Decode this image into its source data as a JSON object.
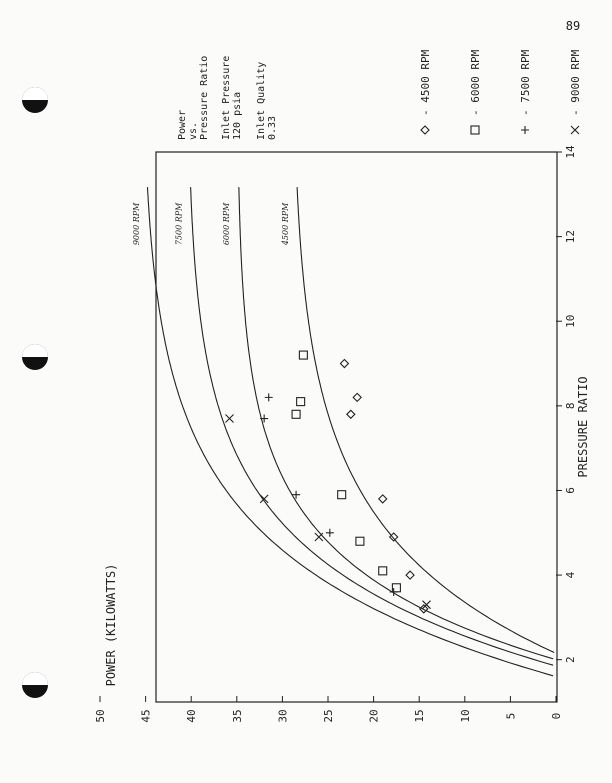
{
  "page_number": "89",
  "colors": {
    "ink": "#222222",
    "paper": "#fbfbf9",
    "punch_hole": "#111111"
  },
  "info_block": {
    "line1": "Power",
    "line2": "vs.",
    "line3": "Pressure Ratio",
    "line4": "Inlet Pressure",
    "line5": "120 psia",
    "line6": "Inlet Quality",
    "line7": "0.33"
  },
  "chart_data": {
    "type": "scatter",
    "orientation": "rotated 90 degrees counter-clockwise on the page",
    "xlabel": "PRESSURE RATIO",
    "ylabel": "POWER (KILOWATTS)",
    "xlim": [
      1,
      14
    ],
    "ylim": [
      0,
      50
    ],
    "x_ticks": [
      "2",
      "4",
      "6",
      "8",
      "10",
      "12",
      "14"
    ],
    "y_ticks": [
      "0",
      "5",
      "10",
      "15",
      "20",
      "25",
      "30",
      "35",
      "40",
      "45",
      "50"
    ],
    "grid": false,
    "legend": [
      {
        "marker": "diamond",
        "label": "- 4500 RPM"
      },
      {
        "marker": "square",
        "label": "- 6000 RPM"
      },
      {
        "marker": "plus",
        "label": "- 7500 RPM"
      },
      {
        "marker": "cross",
        "label": "- 9000 RPM"
      }
    ],
    "series": [
      {
        "name": "4500 RPM",
        "marker": "diamond",
        "curve_label": "4500 RPM",
        "points": [
          [
            3.2,
            14.5
          ],
          [
            4.0,
            16.0
          ],
          [
            4.9,
            17.8
          ],
          [
            5.8,
            19.0
          ],
          [
            7.8,
            22.5
          ],
          [
            8.2,
            21.8
          ],
          [
            9.0,
            23.2
          ]
        ]
      },
      {
        "name": "6000 RPM",
        "marker": "square",
        "curve_label": "6000 RPM",
        "points": [
          [
            3.7,
            17.5
          ],
          [
            4.1,
            19.0
          ],
          [
            4.8,
            21.5
          ],
          [
            5.9,
            23.5
          ],
          [
            7.8,
            28.5
          ],
          [
            8.1,
            28.0
          ],
          [
            9.2,
            27.7
          ]
        ]
      },
      {
        "name": "7500 RPM",
        "marker": "plus",
        "curve_label": "7500 RPM",
        "points": [
          [
            3.6,
            17.8
          ],
          [
            5.0,
            24.8
          ],
          [
            5.9,
            28.5
          ],
          [
            7.7,
            32.0
          ],
          [
            8.2,
            31.5
          ]
        ]
      },
      {
        "name": "9000 RPM",
        "marker": "cross",
        "curve_label": "9000 RPM",
        "points": [
          [
            3.3,
            14.2
          ],
          [
            4.9,
            26.0
          ],
          [
            5.8,
            32.0
          ],
          [
            7.7,
            35.8
          ]
        ]
      }
    ],
    "curves": [
      {
        "name": "4500 RPM",
        "a": 29.0,
        "x0": 2.15,
        "k": 0.35
      },
      {
        "name": "6000 RPM",
        "a": 35.0,
        "x0": 2.0,
        "k": 0.45
      },
      {
        "name": "7500 RPM",
        "a": 40.5,
        "x0": 1.85,
        "k": 0.4
      },
      {
        "name": "9000 RPM",
        "a": 45.5,
        "x0": 1.6,
        "k": 0.36
      }
    ]
  }
}
